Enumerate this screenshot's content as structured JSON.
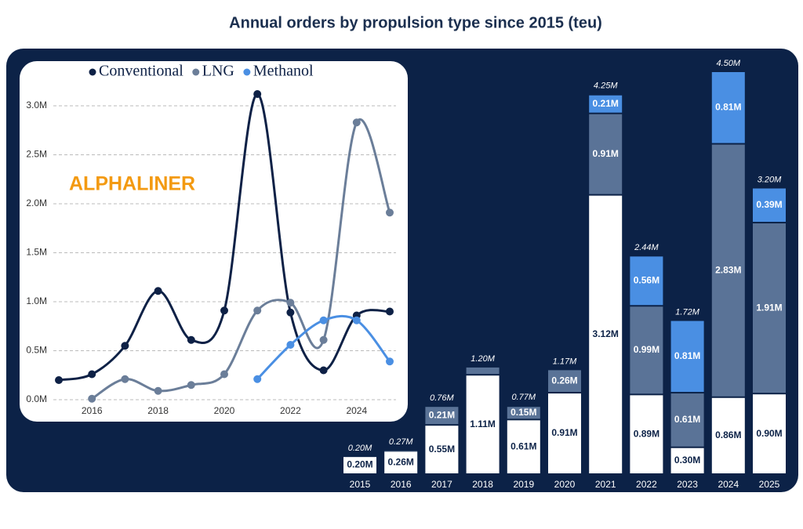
{
  "chart_data": [
    {
      "type": "bar",
      "title": "Annual orders by propulsion type since 2015 (teu)",
      "categories": [
        "2015",
        "2016",
        "2017",
        "2018",
        "2019",
        "2020",
        "2021",
        "2022",
        "2023",
        "2024",
        "2025"
      ],
      "series": [
        {
          "name": "Conventional",
          "color": "#ffffff",
          "values": [
            0.2,
            0.26,
            0.55,
            1.11,
            0.61,
            0.91,
            3.12,
            0.89,
            0.3,
            0.86,
            0.9
          ],
          "value_labels": [
            "0.20M",
            "0.26M",
            "0.55M",
            "1.11M",
            "0.61M",
            "0.91M",
            "3.12M",
            "0.89M",
            "0.30M",
            "0.86M",
            "0.90M"
          ]
        },
        {
          "name": "LNG",
          "color": "#5a7397",
          "values": [
            null,
            0.01,
            0.21,
            0.09,
            0.15,
            0.26,
            0.91,
            0.99,
            0.61,
            2.83,
            1.91
          ],
          "value_labels": [
            null,
            null,
            "0.21M",
            null,
            "0.15M",
            "0.26M",
            "0.91M",
            "0.99M",
            "0.61M",
            "2.83M",
            "1.91M"
          ]
        },
        {
          "name": "Methanol",
          "color": "#4a8fe3",
          "values": [
            null,
            null,
            null,
            null,
            null,
            null,
            0.21,
            0.56,
            0.81,
            0.81,
            0.39
          ],
          "value_labels": [
            null,
            null,
            null,
            null,
            null,
            null,
            "0.21M",
            "0.56M",
            "0.81M",
            "0.81M",
            "0.39M"
          ]
        }
      ],
      "totals": [
        0.2,
        0.27,
        0.76,
        1.2,
        0.77,
        1.17,
        4.25,
        2.44,
        1.72,
        4.5,
        3.2
      ],
      "total_labels": [
        "0.20M",
        "0.27M",
        "0.76M",
        "1.20M",
        "0.77M",
        "1.17M",
        "4.25M",
        "2.44M",
        "1.72M",
        "4.50M",
        "3.20M"
      ]
    },
    {
      "type": "line",
      "annotation": "ALPHALINER",
      "x": [
        2015,
        2016,
        2017,
        2018,
        2019,
        2020,
        2021,
        2022,
        2023,
        2024,
        2025
      ],
      "series": [
        {
          "name": "Conventional",
          "color": "#0e2146",
          "values": [
            0.2,
            0.26,
            0.55,
            1.11,
            0.61,
            0.91,
            3.12,
            0.89,
            0.3,
            0.86,
            0.9
          ]
        },
        {
          "name": "LNG",
          "color": "#6b7e99",
          "values": [
            null,
            0.01,
            0.21,
            0.09,
            0.15,
            0.26,
            0.91,
            0.99,
            0.61,
            2.83,
            1.91
          ]
        },
        {
          "name": "Methanol",
          "color": "#4a8fe3",
          "values": [
            null,
            null,
            null,
            null,
            null,
            null,
            0.21,
            0.56,
            0.81,
            0.81,
            0.39
          ]
        }
      ],
      "xlim": [
        2015,
        2025
      ],
      "xticks": [
        2016,
        2018,
        2020,
        2022,
        2024
      ],
      "ylim": [
        0,
        3.2
      ],
      "yticks": [
        {
          "value": 0,
          "label": "0.0M"
        },
        {
          "value": 0.5,
          "label": "0.5M"
        },
        {
          "value": 1.0,
          "label": "1.0M"
        },
        {
          "value": 1.5,
          "label": "1.5M"
        },
        {
          "value": 2.0,
          "label": "2.0M"
        },
        {
          "value": 2.5,
          "label": "2.5M"
        },
        {
          "value": 3.0,
          "label": "3.0M"
        }
      ],
      "grid": true,
      "legend": "top"
    }
  ]
}
